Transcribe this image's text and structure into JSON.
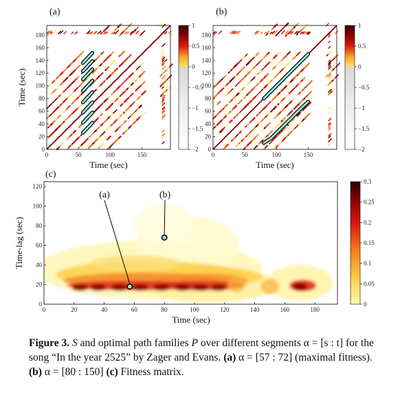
{
  "panels": {
    "a": {
      "label": "(a)",
      "xlabel": "Time (sec)",
      "ylabel": "Time (sec)",
      "xticks": [
        "0",
        "50",
        "100",
        "150"
      ],
      "yticks": [
        "0",
        "20",
        "40",
        "60",
        "80",
        "100",
        "120",
        "140",
        "160",
        "180"
      ],
      "colorbar_ticks": [
        "1",
        "0.5",
        "0",
        "−0.5",
        "−1",
        "−1.5",
        "−2"
      ],
      "segment": "[57:72]"
    },
    "b": {
      "label": "(b)",
      "xlabel": "Time (sec)",
      "xticks": [
        "0",
        "50",
        "100",
        "150"
      ],
      "yticks": [
        "0",
        "20",
        "40",
        "60",
        "80",
        "100",
        "120",
        "140",
        "160",
        "180"
      ],
      "colorbar_ticks": [
        "1",
        "0.5",
        "0",
        "−0.5",
        "−1",
        "−1.5",
        "−2"
      ],
      "segment": "[80:150]"
    },
    "c": {
      "label": "(c)",
      "xlabel": "Time (sec)",
      "ylabel": "Time-lag (sec)",
      "xticks": [
        "0",
        "20",
        "40",
        "60",
        "80",
        "100",
        "120",
        "140",
        "160",
        "180"
      ],
      "yticks": [
        "0",
        "20",
        "40",
        "60",
        "80",
        "100",
        "120"
      ],
      "colorbar_ticks": [
        "0.3",
        "0.25",
        "0.2",
        "0.15",
        "0.1",
        "0.05",
        "0"
      ],
      "annotations": [
        {
          "label": "(a)",
          "x": 57,
          "y": 18
        },
        {
          "label": "(b)",
          "x": 80,
          "y": 68
        }
      ]
    }
  },
  "colors": {
    "dark_red": "#7a0000",
    "red": "#d01818",
    "orange": "#f07a1a",
    "yellow": "#ffe566",
    "path_outline": "#0a1a18",
    "path_fill": "#9ff2e0"
  },
  "caption": {
    "fig": "Figure 3.",
    "t1": " ",
    "S": "S",
    "t2": " and optimal path families ",
    "P": "P",
    "t3": " over different segments α = [s : t] for the song “In the year 2525” by Zager and Evans. ",
    "a": "(a)",
    "t4": " α = [57 : 72] (maximal fitness). ",
    "b": "(b)",
    "t5": " α = [80 : 150] ",
    "c": "(c)",
    "t6": " Fitness matrix."
  }
}
